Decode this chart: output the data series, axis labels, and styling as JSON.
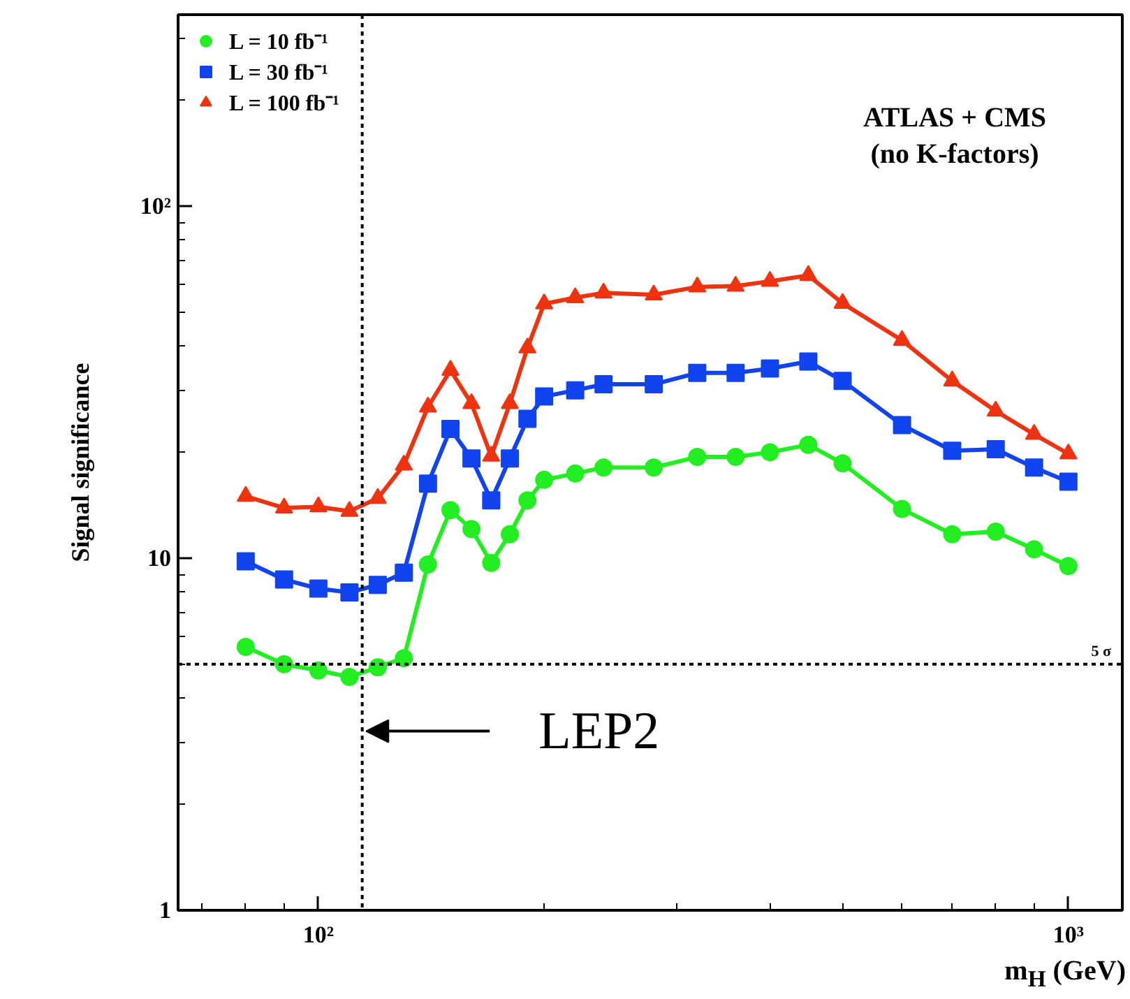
{
  "chart_data": {
    "type": "line",
    "xlabel": "m$_{H}$ (GeV)",
    "ylabel": "Signal significance",
    "log": "xy",
    "grid": false,
    "legend": "top left",
    "line_style": "solid",
    "xlim": [
      65,
      1180
    ],
    "ylim": [
      1,
      350
    ],
    "xticks": [
      {
        "value": 100,
        "label": "10²"
      },
      {
        "value": 1000,
        "label": "10³"
      }
    ],
    "yticks": [
      1,
      10,
      {
        "value": 100,
        "label": "10²"
      }
    ],
    "x": [
      80,
      90,
      100,
      110,
      120,
      130,
      140,
      150,
      160,
      170,
      180,
      190,
      200,
      220,
      240,
      280,
      320,
      360,
      400,
      450,
      500,
      600,
      700,
      800,
      900,
      1000
    ],
    "series": [
      {
        "name": "L = 10 fb⁻¹",
        "color": "#22ee22",
        "marker": "circle",
        "values": [
          5.6,
          5.0,
          4.8,
          4.6,
          4.9,
          5.2,
          9.6,
          13.7,
          12.1,
          9.7,
          11.7,
          14.6,
          16.7,
          17.4,
          18.1,
          18.1,
          19.4,
          19.4,
          20.0,
          21.0,
          18.6,
          13.8,
          11.7,
          11.9,
          10.6,
          9.5
        ]
      },
      {
        "name": "L = 30 fb⁻¹",
        "color": "#1144ee",
        "marker": "square",
        "values": [
          9.8,
          8.7,
          8.2,
          8.0,
          8.4,
          9.1,
          16.3,
          23.3,
          19.2,
          14.6,
          19.2,
          24.9,
          28.8,
          30.0,
          31.2,
          31.2,
          33.6,
          33.6,
          34.6,
          36.2,
          31.9,
          23.9,
          20.2,
          20.4,
          18.1,
          16.5
        ]
      },
      {
        "name": "L = 100 fb⁻¹",
        "color": "#ee3311",
        "marker": "triangle",
        "values": [
          15.0,
          13.9,
          14.0,
          13.6,
          14.8,
          18.4,
          26.9,
          34.2,
          27.5,
          19.5,
          27.5,
          39.6,
          52.8,
          55.0,
          56.7,
          56.0,
          59.0,
          59.3,
          61.2,
          63.6,
          53.0,
          41.6,
          31.9,
          26.2,
          22.5,
          19.8
        ]
      }
    ],
    "ref_lines": [
      {
        "axis": "y",
        "value": 5,
        "label": "5 σ",
        "line_style": "dotted",
        "color": "#000000"
      },
      {
        "axis": "x",
        "value": 114.4,
        "label": "LEP2",
        "line_style": "dotted",
        "color": "#000000"
      }
    ],
    "annotations": [
      "ATLAS + CMS",
      "(no K-factors)"
    ]
  }
}
